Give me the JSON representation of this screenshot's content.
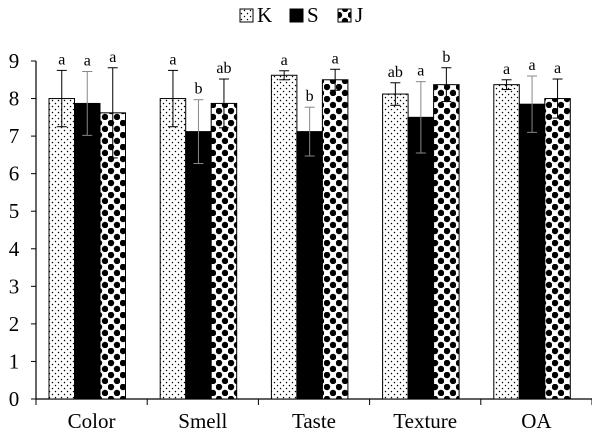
{
  "chart_data": {
    "type": "bar",
    "title": "",
    "xlabel": "",
    "ylabel": "",
    "ylim": [
      0,
      9
    ],
    "yticks": [
      0,
      1,
      2,
      3,
      4,
      5,
      6,
      7,
      8,
      9
    ],
    "grid": false,
    "legend_position": "top-center",
    "categories": [
      "Color",
      "Smell",
      "Taste",
      "Texture",
      "OA"
    ],
    "series": [
      {
        "name": "K",
        "pattern": "dots",
        "values": [
          8.0,
          8.0,
          8.62,
          8.12,
          8.37
        ],
        "errors": [
          0.75,
          0.75,
          0.12,
          0.3,
          0.13
        ],
        "letters": [
          "a",
          "a",
          "a",
          "ab",
          "a"
        ]
      },
      {
        "name": "S",
        "pattern": "solid",
        "values": [
          7.87,
          7.12,
          7.12,
          7.5,
          7.85
        ],
        "errors": [
          0.85,
          0.85,
          0.65,
          0.95,
          0.75
        ],
        "letters": [
          "a",
          "b",
          "b",
          "a",
          "a"
        ]
      },
      {
        "name": "J",
        "pattern": "checker",
        "values": [
          7.62,
          7.87,
          8.5,
          8.37,
          8.0
        ],
        "errors": [
          1.2,
          0.65,
          0.28,
          0.45,
          0.52
        ],
        "letters": [
          "a",
          "ab",
          "a",
          "b",
          "a"
        ]
      }
    ]
  }
}
